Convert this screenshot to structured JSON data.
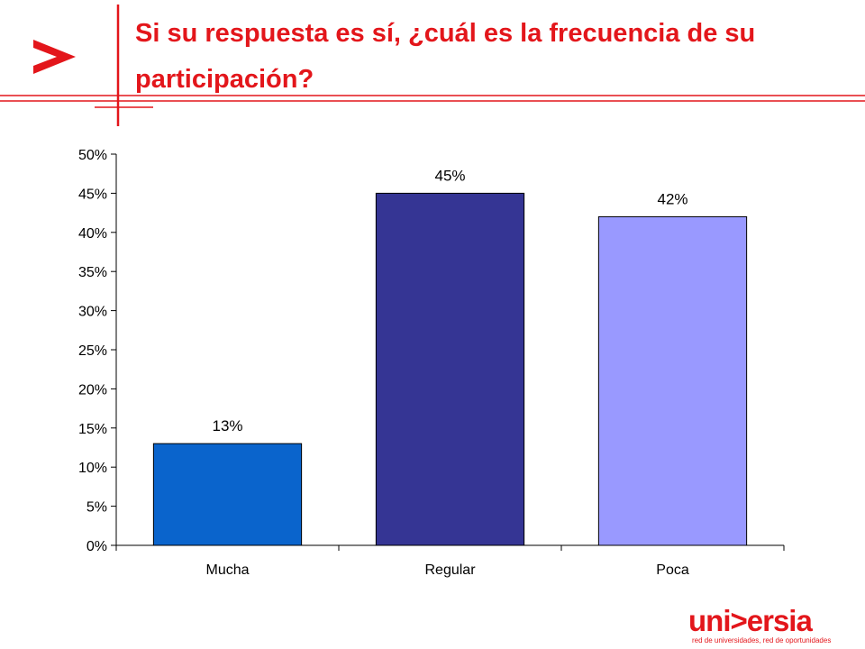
{
  "slide": {
    "title": "Si su respuesta es sí, ¿cuál es la frecuencia de su participación?"
  },
  "logo": {
    "word": "uni>ersia",
    "tagline": "red de universidades, red de oportunidades"
  },
  "colors": {
    "brand_red": "#e3161b",
    "bar_mucha": "#0a64cc",
    "bar_regular": "#353594",
    "bar_poca": "#9999ff"
  },
  "chart_data": {
    "type": "bar",
    "title": "",
    "xlabel": "",
    "ylabel": "",
    "categories": [
      "Mucha",
      "Regular",
      "Poca"
    ],
    "values": [
      13,
      45,
      42
    ],
    "value_labels": [
      "13%",
      "45%",
      "42%"
    ],
    "bar_colors": [
      "#0a64cc",
      "#353594",
      "#9999ff"
    ],
    "ylim": [
      0,
      50
    ],
    "yticks": [
      0,
      5,
      10,
      15,
      20,
      25,
      30,
      35,
      40,
      45,
      50
    ],
    "ytick_labels": [
      "0%",
      "5%",
      "10%",
      "15%",
      "20%",
      "25%",
      "30%",
      "35%",
      "40%",
      "45%",
      "50%"
    ],
    "grid": false,
    "legend": "none"
  }
}
